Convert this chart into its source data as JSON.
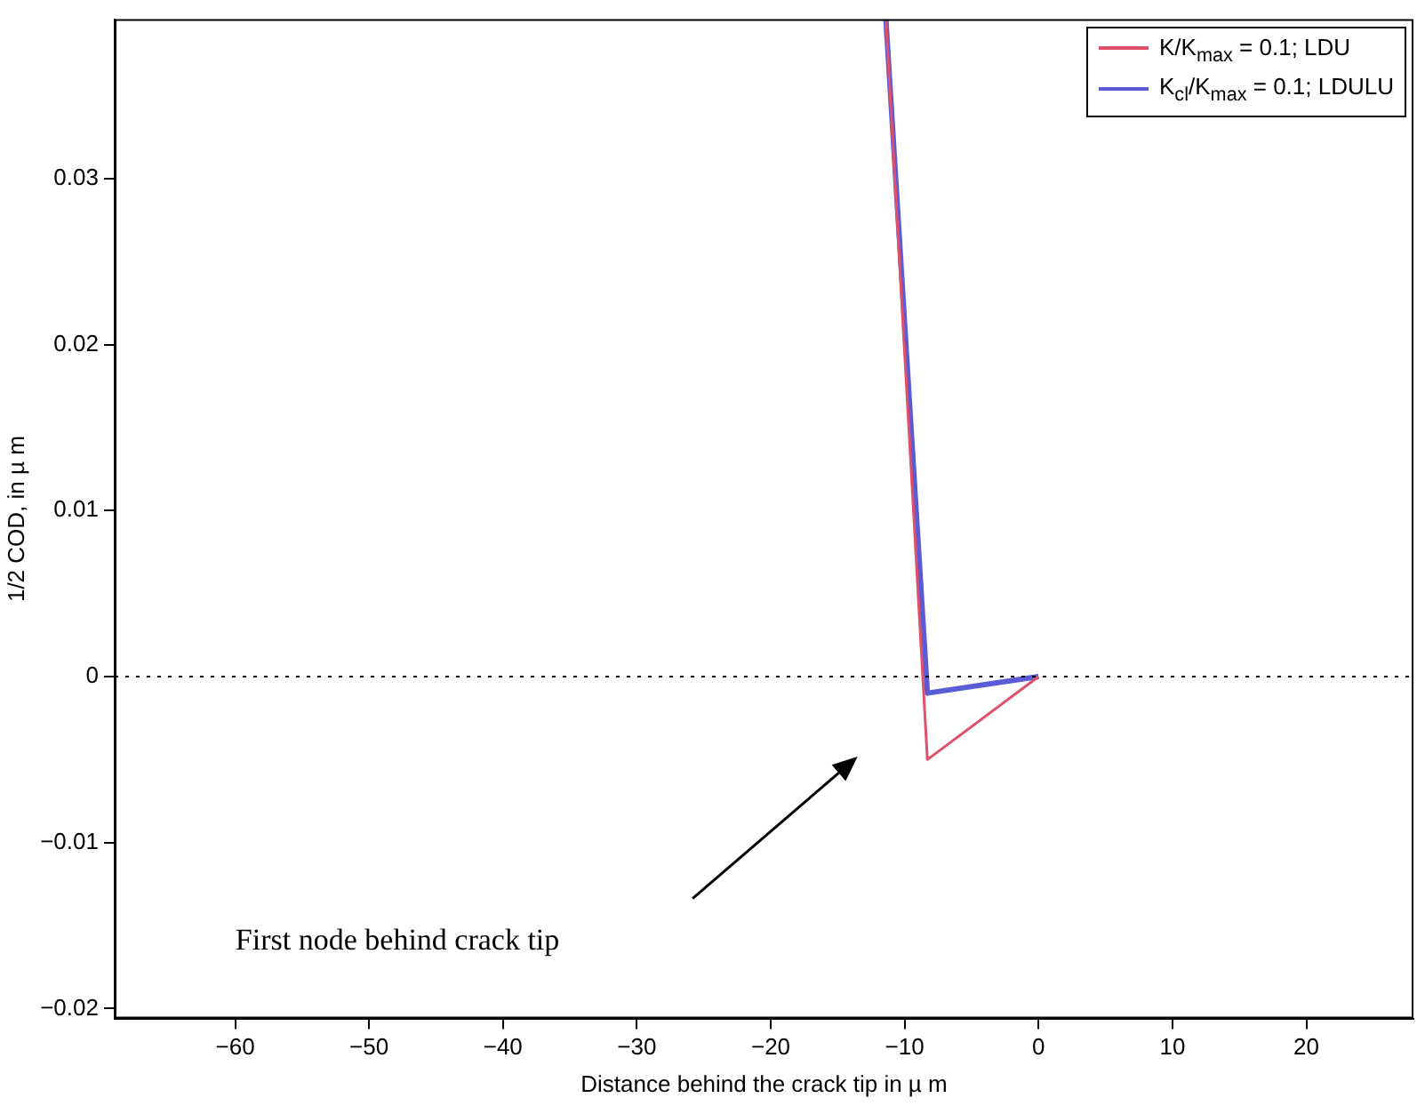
{
  "chart_data": {
    "type": "line",
    "xlabel": "Distance behind the crack tip in µ m",
    "ylabel": "1/2 COD, in µ m",
    "xlim": [
      -69,
      28
    ],
    "ylim": [
      -0.0206,
      0.0396
    ],
    "xticks": [
      -60,
      -50,
      -40,
      -30,
      -20,
      -10,
      0,
      10,
      20
    ],
    "yticks": [
      -0.02,
      -0.01,
      0,
      0.01,
      0.02,
      0.03
    ],
    "grid": false,
    "legend": "top right",
    "marker": "none",
    "line_style": "solid",
    "series": [
      {
        "name": "K/K$_{max}$ = 0.1; LDU",
        "color": "#e0506a",
        "x": [
          -11.4,
          -8.3,
          0
        ],
        "values": [
          0.0396,
          -0.005,
          0
        ]
      },
      {
        "name": "K$_{cl}$/K$_{max}$ = 0.1; LDULU",
        "color": "#5b5bd6",
        "x": [
          -11.4,
          -8.3,
          0
        ],
        "values": [
          0.0396,
          -0.001,
          0
        ]
      }
    ],
    "ref_lines": [
      {
        "axis": "y",
        "value": 0,
        "color": "#000000",
        "line_style": "dotted"
      }
    ],
    "annotations": [
      "First node behind crack tip"
    ]
  }
}
